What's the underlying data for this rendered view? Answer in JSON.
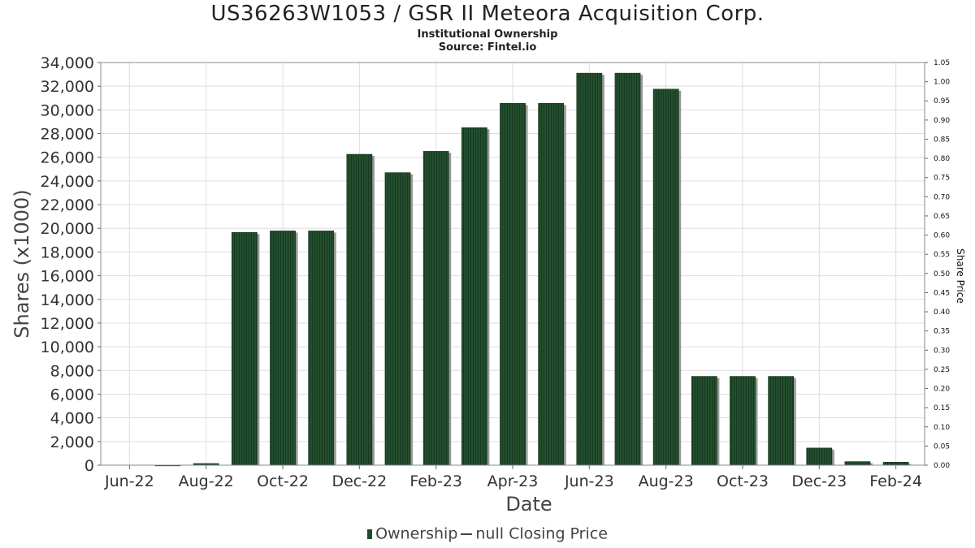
{
  "chart_data": {
    "type": "bar",
    "title": "US36263W1053 / GSR II Meteora Acquisition Corp.",
    "subtitle": "Institutional Ownership",
    "source": "Source: Fintel.io",
    "xlabel": "Date",
    "ylabel": "Shares (x1000)",
    "ylabel_right": "Share Price",
    "ylim": [
      0,
      34000
    ],
    "ylim_right": [
      0,
      1.05
    ],
    "yticks": [
      "0",
      "2,000",
      "4,000",
      "6,000",
      "8,000",
      "10,000",
      "12,000",
      "14,000",
      "16,000",
      "18,000",
      "20,000",
      "22,000",
      "24,000",
      "26,000",
      "28,000",
      "30,000",
      "32,000",
      "34,000"
    ],
    "yticks_right": [
      "0.00",
      "0.05",
      "0.10",
      "0.15",
      "0.20",
      "0.25",
      "0.30",
      "0.35",
      "0.40",
      "0.45",
      "0.50",
      "0.55",
      "0.60",
      "0.65",
      "0.70",
      "0.75",
      "0.80",
      "0.85",
      "0.90",
      "0.95",
      "1.00",
      "1.05"
    ],
    "xticks": [
      "Jun-22",
      "Aug-22",
      "Oct-22",
      "Dec-22",
      "Feb-23",
      "Apr-23",
      "Jun-23",
      "Aug-23",
      "Oct-23",
      "Dec-23",
      "Feb-24"
    ],
    "x": [
      "2022-06",
      "2022-07",
      "2022-08",
      "2022-09",
      "2022-10",
      "2022-11",
      "2022-12",
      "2023-01",
      "2023-02",
      "2023-03",
      "2023-04",
      "2023-05",
      "2023-06",
      "2023-07",
      "2023-08",
      "2023-09",
      "2023-10",
      "2023-11",
      "2023-12",
      "2024-01",
      "2024-02"
    ],
    "series": [
      {
        "name": "Ownership",
        "color": "#1e4d2b",
        "values": [
          0,
          10,
          140,
          19650,
          19780,
          19780,
          26250,
          24700,
          26500,
          28500,
          30550,
          30550,
          33100,
          33100,
          31750,
          7500,
          7500,
          7500,
          1450,
          300,
          250
        ]
      }
    ],
    "legend": {
      "position": "bottom",
      "entries": [
        "Ownership",
        "null Closing Price"
      ]
    },
    "grid": true
  }
}
